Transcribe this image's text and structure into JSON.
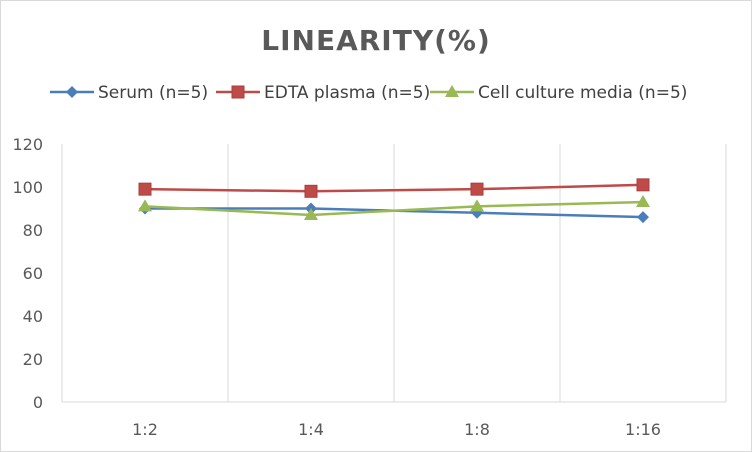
{
  "chart_data": {
    "type": "line",
    "title": "LINEARITY(%)",
    "xlabel": "",
    "ylabel": "",
    "categories": [
      "1:2",
      "1:4",
      "1:8",
      "1:16"
    ],
    "ylim": [
      0,
      120
    ],
    "yticks": [
      0,
      20,
      40,
      60,
      80,
      100,
      120
    ],
    "grid": "vertical",
    "legend_position": "top",
    "series": [
      {
        "name": "Serum (n=5)",
        "values": [
          90,
          90,
          88,
          86
        ],
        "color": "#4a7ebb",
        "marker": "diamond"
      },
      {
        "name": "EDTA plasma (n=5)",
        "values": [
          99,
          98,
          99,
          101
        ],
        "color": "#be4b48",
        "marker": "square"
      },
      {
        "name": "Cell culture media (n=5)",
        "values": [
          91,
          87,
          91,
          93
        ],
        "color": "#98b954",
        "marker": "triangle"
      }
    ]
  }
}
